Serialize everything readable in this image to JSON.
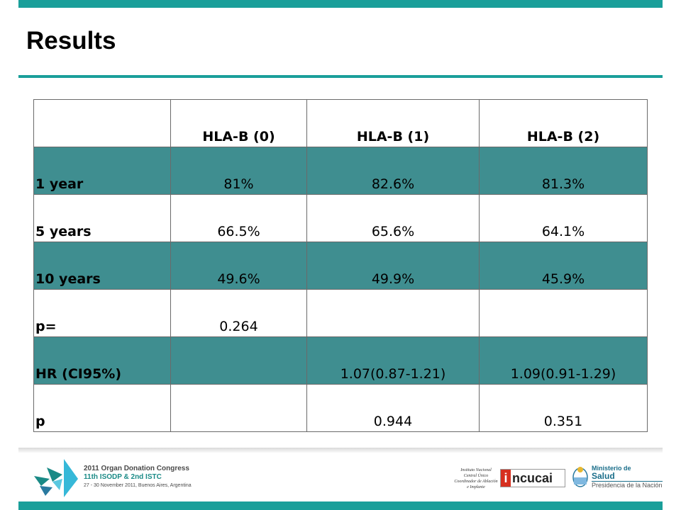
{
  "slide": {
    "title": "Results"
  },
  "table": {
    "columns": [
      "",
      "HLA-B (0)",
      "HLA-B (1)",
      "HLA-B (2)"
    ],
    "rows": [
      {
        "label": "1 year",
        "cells": [
          "81%",
          "82.6%",
          "81.3%"
        ],
        "shaded": true
      },
      {
        "label": "5 years",
        "cells": [
          "66.5%",
          "65.6%",
          "64.1%"
        ],
        "shaded": false
      },
      {
        "label": "10 years",
        "cells": [
          "49.6%",
          "49.9%",
          "45.9%"
        ],
        "shaded": true
      },
      {
        "label": "p=",
        "cells": [
          "0.264",
          "",
          ""
        ],
        "shaded": false
      },
      {
        "label": "HR (CI95%)",
        "cells": [
          "",
          "1.07(0.87-1.21)",
          "1.09(0.91-1.29)"
        ],
        "shaded": true
      },
      {
        "label": "p",
        "cells": [
          "",
          "0.944",
          "0.351"
        ],
        "shaded": false
      }
    ]
  },
  "footer": {
    "congress_line1": "2011 Organ Donation Congress",
    "congress_line2": "11th ISODP & 2nd ISTC",
    "congress_line3": "27 - 30 November 2011, Buenos Aires, Argentina",
    "incucai_caption": "Instituto Nacional Central Único Coordinador de Ablación e Implante",
    "incucai_logo": "incucai",
    "ministry_line1": "Ministerio de",
    "ministry_line2": "Salud",
    "ministry_line3": "Presidencia de la Nación",
    "accent_color": "#1a9f9a",
    "shade_color": "#3f8e90"
  }
}
